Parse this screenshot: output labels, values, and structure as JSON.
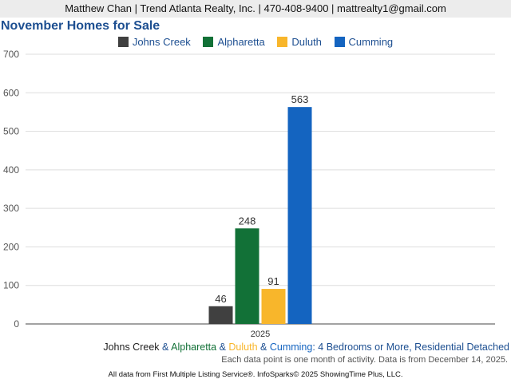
{
  "header": {
    "text": "Matthew Chan | Trend Atlanta Realty, Inc. | 470-408-9400 | mattrealty1@gmail.com"
  },
  "chart_data": {
    "type": "bar",
    "title": "November Homes for Sale",
    "categories": [
      "2025"
    ],
    "series": [
      {
        "name": "Johns Creek",
        "color": "#404040",
        "values": [
          46
        ]
      },
      {
        "name": "Alpharetta",
        "color": "#127137",
        "values": [
          248
        ]
      },
      {
        "name": "Duluth",
        "color": "#f8b62b",
        "values": [
          91
        ]
      },
      {
        "name": "Cumming",
        "color": "#1464c0",
        "values": [
          563
        ]
      }
    ],
    "ylim": [
      0,
      700
    ],
    "yticks": [
      "0",
      "100",
      "200",
      "300",
      "400",
      "500",
      "600",
      "700"
    ],
    "grid": true,
    "legend": "top-center"
  },
  "footer": {
    "s1": "Johns Creek",
    "s2": "Alpharetta",
    "s3": "Duluth",
    "s4": "Cumming",
    "amp": " & ",
    "suffix": ": 4 Bedrooms or More, Residential Detached",
    "note": "Each data point is one month of activity. Data is from December 14, 2025.",
    "source": "All data from First Multiple Listing Service®. InfoSparks© 2025 ShowingTime Plus, LLC."
  },
  "colors": {
    "johns_creek": "#404040",
    "alpharetta": "#127137",
    "duluth": "#f8b62b",
    "cumming": "#1464c0",
    "label_blue": "#1d4f91"
  }
}
